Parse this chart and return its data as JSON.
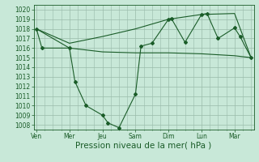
{
  "xlabel": "Pression niveau de la mer( hPa )",
  "ylim": [
    1007.5,
    1020.5
  ],
  "yticks": [
    1008,
    1009,
    1010,
    1011,
    1012,
    1013,
    1014,
    1015,
    1016,
    1017,
    1018,
    1019,
    1020
  ],
  "day_labels": [
    "Ven",
    "Mer",
    "Jeu",
    "Sam",
    "Dim",
    "Lun",
    "Mar"
  ],
  "day_positions": [
    0,
    24,
    48,
    72,
    96,
    120,
    144
  ],
  "xlim": [
    -2,
    158
  ],
  "bg_color": "#c8e8d8",
  "grid_color": "#99bbaa",
  "line_color": "#1a5c28",
  "series_main_x": [
    0,
    4,
    24,
    28,
    36,
    48,
    52,
    60,
    72,
    76,
    84,
    96,
    98,
    108,
    120,
    124,
    132,
    144,
    148,
    156
  ],
  "series_main_y": [
    1018,
    1016,
    1016,
    1012.5,
    1010,
    1009.0,
    1008.2,
    1007.7,
    1011.2,
    1016.2,
    1016.5,
    1019.0,
    1019.1,
    1016.6,
    1019.5,
    1019.6,
    1017.0,
    1018.1,
    1017.2,
    1015.0
  ],
  "series_flat_x": [
    0,
    24,
    48,
    72,
    96,
    120,
    144,
    156
  ],
  "series_flat_y": [
    1018.0,
    1016.0,
    1015.6,
    1015.5,
    1015.5,
    1015.4,
    1015.2,
    1015.0
  ],
  "series_trend_x": [
    0,
    24,
    48,
    72,
    96,
    120,
    144,
    156
  ],
  "series_trend_y": [
    1018.0,
    1016.5,
    1017.2,
    1018.0,
    1019.0,
    1019.5,
    1019.6,
    1015.0
  ],
  "xlabel_fontsize": 7.5,
  "tick_fontsize": 5.5,
  "linewidth": 0.8,
  "marker_size": 2.0
}
